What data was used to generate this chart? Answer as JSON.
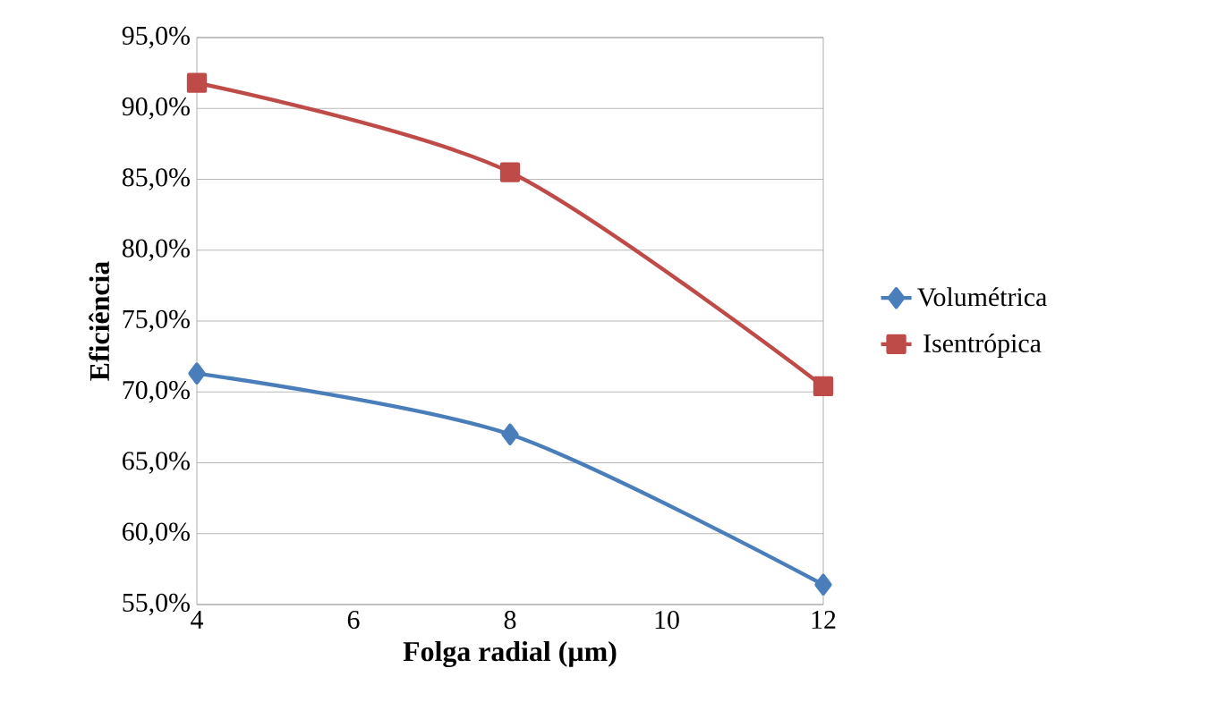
{
  "chart_data": {
    "type": "line",
    "xlabel": "Folga radial (µm)",
    "ylabel": "Eficiência",
    "x": [
      4,
      8,
      12
    ],
    "series": [
      {
        "name": "Volumétrica",
        "color": "#4a7ebb",
        "marker": "diamond",
        "values": [
          71.3,
          67.0,
          56.4
        ]
      },
      {
        "name": "Isentrópica",
        "color": "#be4b48",
        "marker": "square",
        "values": [
          91.8,
          85.5,
          70.4
        ]
      }
    ],
    "xlim": [
      4,
      12
    ],
    "xticks": [
      4,
      6,
      8,
      10,
      12
    ],
    "ylim": [
      55,
      95
    ],
    "yticks": [
      {
        "value": 55,
        "label": "55,0%"
      },
      {
        "value": 60,
        "label": "60,0%"
      },
      {
        "value": 65,
        "label": "65,0%"
      },
      {
        "value": 70,
        "label": "70,0%"
      },
      {
        "value": 75,
        "label": "75,0%"
      },
      {
        "value": 80,
        "label": "80,0%"
      },
      {
        "value": 85,
        "label": "85,0%"
      },
      {
        "value": 90,
        "label": "90,0%"
      },
      {
        "value": 95,
        "label": "95,0%"
      }
    ],
    "grid": "y",
    "legend": "right"
  }
}
